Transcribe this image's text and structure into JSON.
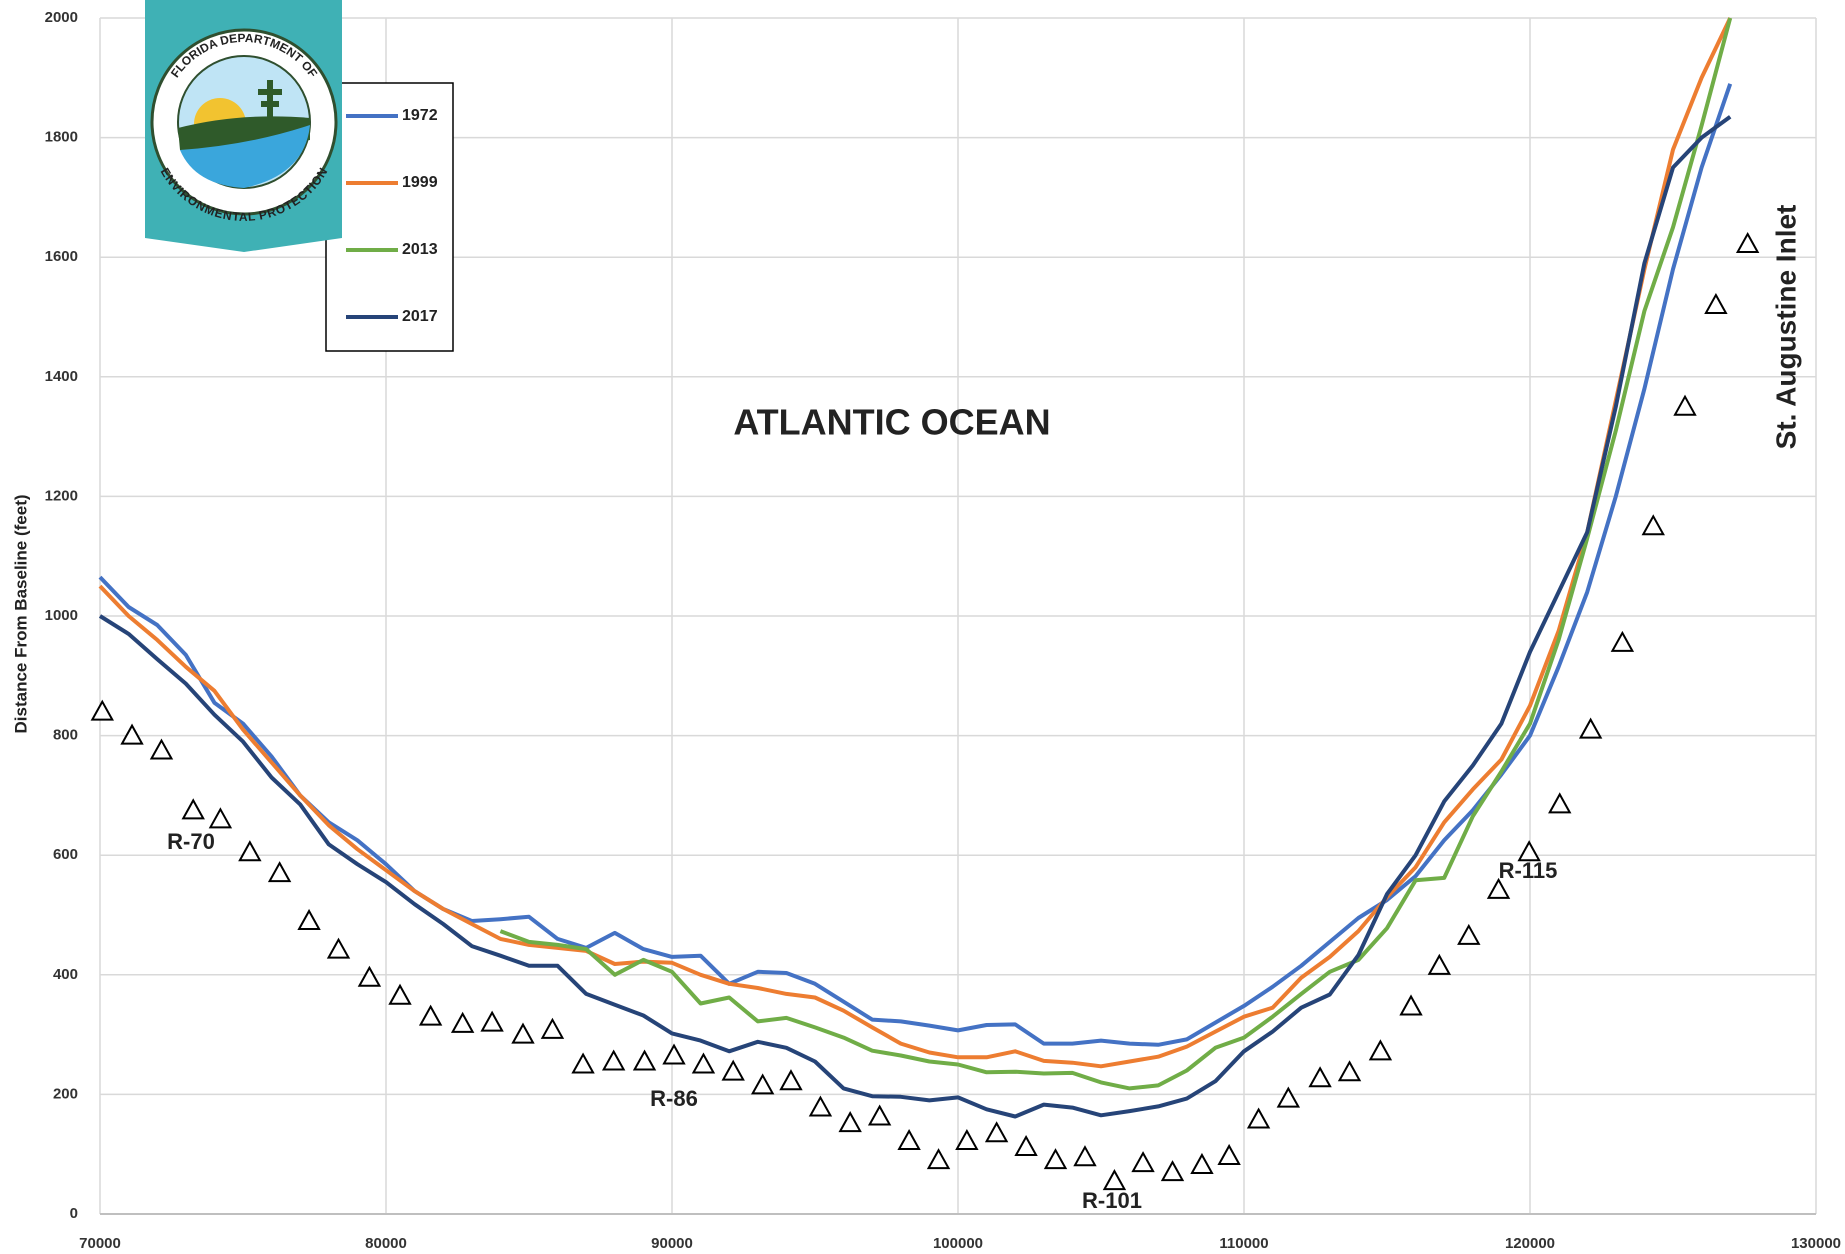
{
  "chart_data": {
    "type": "line",
    "y_label": "Distance From Baseline (feet)",
    "logo_text": [
      "FLORIDA DEPARTMENT OF",
      "ENVIRONMENTAL PROTECTION"
    ],
    "annotations": [
      "ATLANTIC OCEAN",
      "St. Augustine Inlet",
      "R-70",
      "R-86",
      "R-101",
      "R-115"
    ],
    "x": [
      70000,
      71000,
      72000,
      73000,
      74000,
      75000,
      76000,
      77000,
      78000,
      79000,
      80000,
      81000,
      82000,
      83000,
      84000,
      85000,
      86000,
      87000,
      88000,
      89000,
      90000,
      91000,
      92000,
      93000,
      94000,
      95000,
      96000,
      97000,
      98000,
      99000,
      100000,
      101000,
      102000,
      103000,
      104000,
      105000,
      106000,
      107000,
      108000,
      109000,
      110000,
      111000,
      112000,
      113000,
      114000,
      115000,
      116000,
      117000,
      118000,
      119000,
      120000,
      121000,
      122000,
      123000,
      124000,
      125000,
      126000,
      127000
    ],
    "series": [
      {
        "name": "1972",
        "color": "#4472c4",
        "values": [
          1065,
          1015,
          985,
          935,
          855,
          820,
          765,
          700,
          655,
          625,
          585,
          540,
          510,
          490,
          493,
          497,
          460,
          445,
          470,
          443,
          430,
          432,
          385,
          405,
          403,
          385,
          355,
          325,
          322,
          315,
          307,
          316,
          317,
          285,
          285,
          290,
          285,
          283,
          292,
          320,
          348,
          380,
          415,
          455,
          495,
          525,
          565,
          625,
          675,
          735,
          800,
          915,
          1040,
          1200,
          1380,
          1580,
          1750,
          1890
        ]
      },
      {
        "name": "1999",
        "color": "#ed7d31",
        "values": [
          1050,
          1000,
          960,
          915,
          875,
          810,
          755,
          700,
          650,
          610,
          575,
          540,
          510,
          485,
          460,
          450,
          445,
          440,
          418,
          422,
          420,
          400,
          385,
          378,
          368,
          362,
          340,
          312,
          285,
          270,
          262,
          262,
          272,
          256,
          253,
          247,
          255,
          263,
          280,
          305,
          330,
          345,
          395,
          430,
          473,
          530,
          580,
          655,
          710,
          760,
          850,
          975,
          1140,
          1360,
          1580,
          1780,
          1900,
          2000
        ]
      },
      {
        "name": "2013",
        "color": "#70ad47",
        "values": [
          null,
          null,
          null,
          null,
          null,
          null,
          null,
          null,
          null,
          null,
          null,
          null,
          null,
          null,
          473,
          455,
          450,
          443,
          400,
          425,
          405,
          352,
          362,
          322,
          328,
          312,
          295,
          273,
          265,
          255,
          250,
          237,
          238,
          235,
          236,
          220,
          210,
          215,
          240,
          278,
          295,
          330,
          368,
          405,
          425,
          478,
          558,
          562,
          665,
          740,
          820,
          960,
          1130,
          1310,
          1510,
          1650,
          1820,
          2000
        ]
      },
      {
        "name": "2017",
        "color": "#264478",
        "values": [
          1000,
          970,
          928,
          887,
          835,
          790,
          730,
          685,
          618,
          585,
          555,
          518,
          485,
          448,
          432,
          415,
          415,
          368,
          350,
          332,
          302,
          290,
          272,
          288,
          278,
          255,
          210,
          197,
          196,
          190,
          195,
          175,
          163,
          183,
          178,
          165,
          172,
          180,
          193,
          222,
          272,
          305,
          345,
          367,
          433,
          535,
          600,
          690,
          750,
          820,
          940,
          1040,
          1140,
          1350,
          1590,
          1750,
          1800,
          1835
        ]
      }
    ],
    "monuments": {
      "x": [
        70080,
        71120,
        72150,
        73260,
        74210,
        75240,
        76280,
        77310,
        78340,
        79420,
        80490,
        81560,
        82680,
        83710,
        84790,
        85820,
        86890,
        87960,
        89040,
        90070,
        91100,
        92140,
        93170,
        94160,
        95190,
        96230,
        97260,
        98290,
        99320,
        100310,
        101350,
        102380,
        103410,
        104440,
        105470,
        106470,
        107500,
        108530,
        109480,
        110510,
        111550,
        112660,
        113690,
        114770,
        115840,
        116830,
        117860,
        118900,
        119970,
        121040,
        122120,
        123230,
        124310,
        125420,
        126500,
        127610
      ],
      "values": [
        840,
        800,
        775,
        675,
        660,
        605,
        570,
        490,
        442,
        395,
        365,
        330,
        318,
        320,
        300,
        308,
        250,
        255,
        255,
        265,
        250,
        238,
        215,
        222,
        178,
        152,
        163,
        122,
        90,
        122,
        135,
        112,
        90,
        95,
        55,
        85,
        70,
        82,
        97,
        158,
        193,
        227,
        237,
        272,
        347,
        415,
        465,
        542,
        605,
        685,
        810,
        955,
        1150,
        1350,
        1520,
        1622
      ]
    },
    "xlim": [
      70000,
      130000
    ],
    "xticks": [
      70000,
      80000,
      90000,
      100000,
      110000,
      120000,
      130000
    ],
    "ylim": [
      0,
      2000
    ],
    "yticks": [
      0,
      200,
      400,
      600,
      800,
      1000,
      1200,
      1400,
      1600,
      1800,
      2000
    ],
    "grid": true
  }
}
